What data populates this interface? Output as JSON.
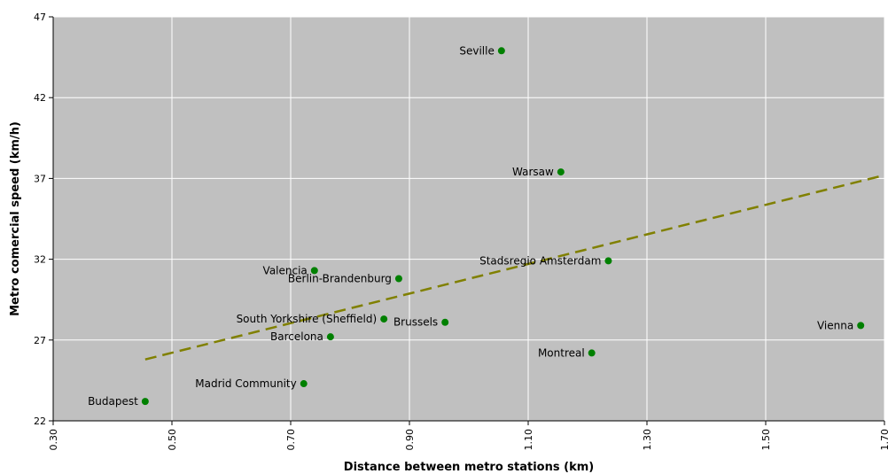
{
  "chart_data": {
    "type": "scatter",
    "xlabel": "Distance between metro stations (km)",
    "ylabel": "Metro comercial speed (km/h)",
    "xlim": [
      0.3,
      1.7
    ],
    "ylim": [
      22,
      47
    ],
    "x_ticks": [
      "0.30",
      "0.50",
      "0.70",
      "0.90",
      "1.10",
      "1.30",
      "1.50",
      "1.70"
    ],
    "y_ticks": [
      "22",
      "27",
      "32",
      "37",
      "42",
      "47"
    ],
    "grid": true,
    "colors": {
      "plot_bg": "#c0c0c0",
      "grid": "#ffffff",
      "point": "#008000",
      "trend": "#808000"
    },
    "points": [
      {
        "label": "Seville",
        "x": 1.055,
        "y": 44.9
      },
      {
        "label": "Warsaw",
        "x": 1.155,
        "y": 37.4
      },
      {
        "label": "Stadsregio Amsterdam",
        "x": 1.235,
        "y": 31.9
      },
      {
        "label": "Valencia",
        "x": 0.74,
        "y": 31.3
      },
      {
        "label": "Berlin-Brandenburg",
        "x": 0.882,
        "y": 30.8
      },
      {
        "label": "South Yorkshire (Sheffield)",
        "x": 0.857,
        "y": 28.3
      },
      {
        "label": "Brussels",
        "x": 0.96,
        "y": 28.1
      },
      {
        "label": "Vienna",
        "x": 1.66,
        "y": 27.9
      },
      {
        "label": "Barcelona",
        "x": 0.767,
        "y": 27.2
      },
      {
        "label": "Montreal",
        "x": 1.207,
        "y": 26.2
      },
      {
        "label": "Madrid Community",
        "x": 0.722,
        "y": 24.3
      },
      {
        "label": "Budapest",
        "x": 0.455,
        "y": 23.2
      }
    ],
    "trendline": {
      "x_start": 0.455,
      "y_start": 25.8,
      "x_end": 1.7,
      "y_end": 37.2,
      "style": "dashed"
    }
  }
}
